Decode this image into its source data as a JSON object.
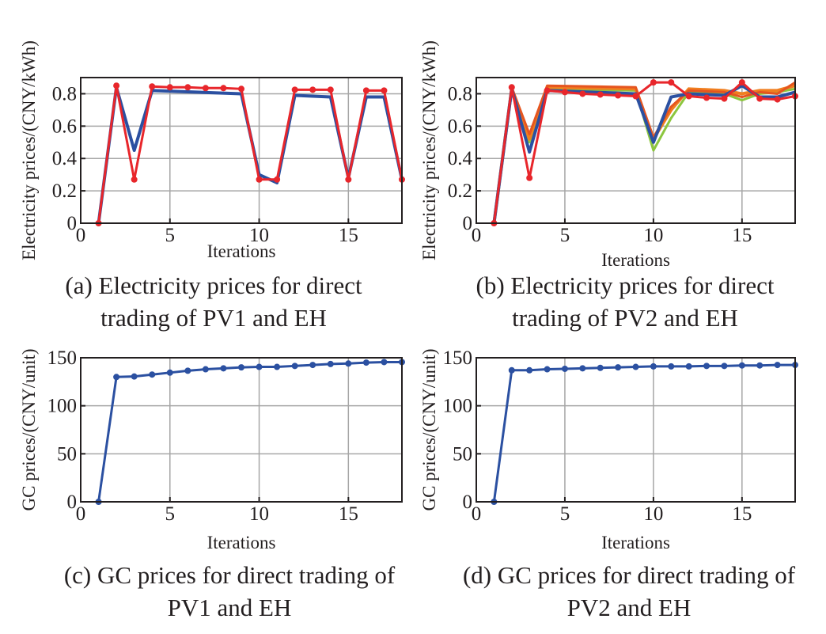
{
  "colors": {
    "blue": "#2b50a1",
    "red": "#e8262b",
    "orange": "#f07e1f",
    "green": "#8cc63e",
    "darkorange": "#e6551f",
    "grid": "#a6a6a6",
    "axis": "#231f20"
  },
  "panels": [
    {
      "id": "a",
      "caption_line1": "(a) Electricity prices for direct",
      "caption_line2": "trading of PV1 and EH"
    },
    {
      "id": "b",
      "caption_line1": "(b) Electricity prices for direct",
      "caption_line2": "trading of PV2 and EH"
    },
    {
      "id": "c",
      "caption_line1": "(c) GC prices for direct trading of",
      "caption_line2": "PV1 and EH"
    },
    {
      "id": "d",
      "caption_line1": "(d) GC prices for direct trading of",
      "caption_line2": "PV2 and EH"
    }
  ],
  "chart_data": [
    {
      "type": "line",
      "panel": "a",
      "xlabel": "Iterations",
      "ylabel": "Electricity prices/(CNY/kWh)",
      "xlim": [
        0,
        18
      ],
      "ylim": [
        0,
        0.9
      ],
      "xticks": [
        0,
        5,
        10,
        15
      ],
      "yticks": [
        0,
        0.2,
        0.4,
        0.6,
        0.8
      ],
      "ytick_labels": [
        "0",
        "0.2",
        "0.4",
        "0.6",
        "0.8"
      ],
      "grid": true,
      "series": [
        {
          "color": "blue",
          "width": 4,
          "markers": false,
          "x": [
            1,
            2,
            3,
            4,
            9,
            10,
            11,
            12,
            14,
            15,
            16,
            17,
            18
          ],
          "y": [
            0,
            0.84,
            0.45,
            0.82,
            0.8,
            0.3,
            0.25,
            0.79,
            0.78,
            0.28,
            0.78,
            0.78,
            0.27
          ]
        },
        {
          "color": "red",
          "width": 3,
          "markers": true,
          "x": [
            1,
            2,
            3,
            4,
            5,
            6,
            7,
            8,
            9,
            10,
            11,
            12,
            13,
            14,
            15,
            16,
            17,
            18
          ],
          "y": [
            0,
            0.85,
            0.27,
            0.845,
            0.84,
            0.84,
            0.835,
            0.835,
            0.83,
            0.27,
            0.27,
            0.825,
            0.825,
            0.825,
            0.27,
            0.82,
            0.82,
            0.27
          ]
        }
      ]
    },
    {
      "type": "line",
      "panel": "b",
      "xlabel": "Iterations",
      "ylabel": "Electricity prices/(CNY/kWh)",
      "xlim": [
        0,
        18
      ],
      "ylim": [
        0,
        0.9
      ],
      "xticks": [
        0,
        5,
        10,
        15
      ],
      "yticks": [
        0,
        0.2,
        0.4,
        0.6,
        0.8
      ],
      "ytick_labels": [
        "0",
        "0.2",
        "0.4",
        "0.6",
        "0.8"
      ],
      "grid": true,
      "series": [
        {
          "color": "green",
          "width": 3,
          "markers": false,
          "x": [
            1,
            2,
            3,
            4,
            9,
            10,
            11,
            12,
            14,
            15,
            16,
            17,
            18
          ],
          "y": [
            0,
            0.83,
            0.5,
            0.83,
            0.82,
            0.45,
            0.65,
            0.81,
            0.8,
            0.76,
            0.8,
            0.81,
            0.83
          ]
        },
        {
          "color": "orange",
          "width": 4,
          "markers": false,
          "x": [
            1,
            2,
            3,
            4,
            9,
            10,
            11,
            12,
            14,
            15,
            16,
            17,
            18
          ],
          "y": [
            0,
            0.83,
            0.52,
            0.84,
            0.83,
            0.52,
            0.7,
            0.83,
            0.82,
            0.8,
            0.82,
            0.82,
            0.85
          ]
        },
        {
          "color": "darkorange",
          "width": 3,
          "markers": false,
          "x": [
            1,
            2,
            3,
            4,
            9,
            10,
            11,
            12,
            14,
            15,
            16,
            17,
            18
          ],
          "y": [
            0,
            0.84,
            0.55,
            0.85,
            0.84,
            0.53,
            0.72,
            0.82,
            0.81,
            0.78,
            0.81,
            0.8,
            0.87
          ]
        },
        {
          "color": "blue",
          "width": 4,
          "markers": false,
          "x": [
            1,
            2,
            3,
            4,
            9,
            10,
            11,
            12,
            14,
            15,
            16,
            17,
            18
          ],
          "y": [
            0,
            0.83,
            0.44,
            0.82,
            0.8,
            0.5,
            0.78,
            0.8,
            0.79,
            0.85,
            0.78,
            0.78,
            0.81
          ]
        },
        {
          "color": "red",
          "width": 3,
          "markers": true,
          "x": [
            1,
            2,
            3,
            4,
            5,
            6,
            7,
            8,
            9,
            10,
            11,
            12,
            13,
            14,
            15,
            16,
            17,
            18
          ],
          "y": [
            0,
            0.84,
            0.28,
            0.82,
            0.81,
            0.8,
            0.795,
            0.79,
            0.785,
            0.87,
            0.87,
            0.785,
            0.775,
            0.77,
            0.87,
            0.77,
            0.765,
            0.785
          ]
        }
      ]
    },
    {
      "type": "line",
      "panel": "c",
      "xlabel": "Iterations",
      "ylabel": "GC prices/(CNY/unit)",
      "xlim": [
        0,
        18
      ],
      "ylim": [
        0,
        150
      ],
      "xticks": [
        0,
        5,
        10,
        15
      ],
      "yticks": [
        0,
        50,
        100,
        150
      ],
      "ytick_labels": [
        "0",
        "50",
        "100",
        "150"
      ],
      "grid": true,
      "series": [
        {
          "color": "blue",
          "width": 3,
          "markers": true,
          "x": [
            1,
            2,
            3,
            4,
            5,
            6,
            7,
            8,
            9,
            10,
            11,
            12,
            13,
            14,
            15,
            16,
            17,
            18
          ],
          "y": [
            0,
            130,
            130.5,
            132.5,
            134.5,
            136.5,
            138,
            139,
            140,
            140.5,
            140.5,
            141.5,
            142.5,
            143.5,
            144,
            145,
            145.5,
            145.5
          ]
        }
      ]
    },
    {
      "type": "line",
      "panel": "d",
      "xlabel": "Iterations",
      "ylabel": "GC prices/(CNY/unit)",
      "xlim": [
        0,
        18
      ],
      "ylim": [
        0,
        150
      ],
      "xticks": [
        0,
        5,
        10,
        15
      ],
      "yticks": [
        0,
        50,
        100,
        150
      ],
      "ytick_labels": [
        "0",
        "50",
        "100",
        "150"
      ],
      "grid": true,
      "series": [
        {
          "color": "blue",
          "width": 3,
          "markers": true,
          "x": [
            1,
            2,
            3,
            4,
            5,
            6,
            7,
            8,
            9,
            10,
            11,
            12,
            13,
            14,
            15,
            16,
            17,
            18
          ],
          "y": [
            0,
            137,
            137,
            138,
            138.5,
            139,
            139.5,
            140,
            140.5,
            141,
            141,
            141,
            141.5,
            141.5,
            142,
            142,
            142.5,
            142.5
          ]
        }
      ]
    }
  ]
}
